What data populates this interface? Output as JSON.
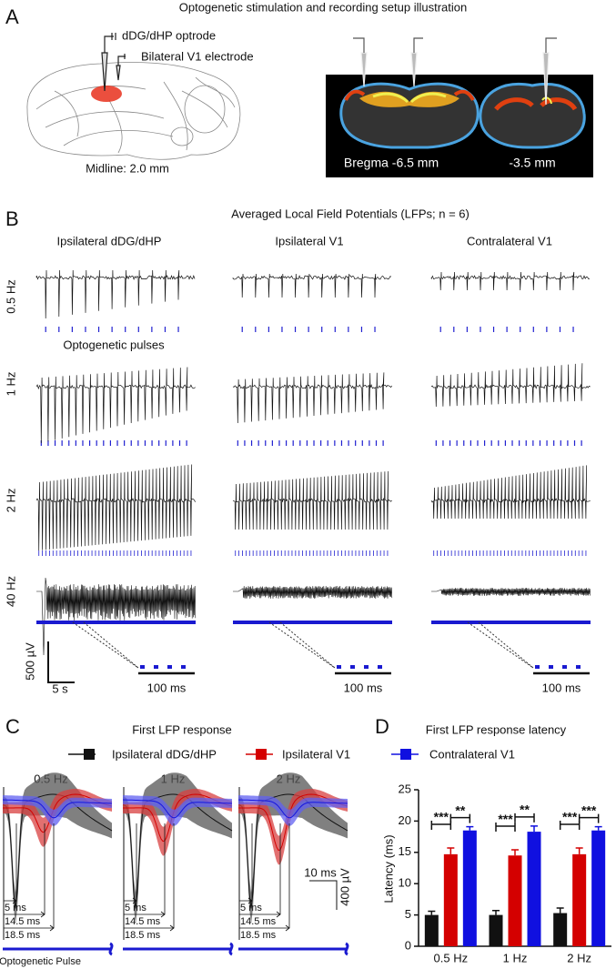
{
  "panel_a": {
    "label": "A",
    "title": "Optogenetic stimulation and recording setup illustration",
    "optrode_label": "dDG/dHP optrode",
    "electrode_label": "Bilateral V1 electrode",
    "midline_label": "Midline: 2.0 mm",
    "slice_labels": [
      "Bregma -6.5 mm",
      "-3.5 mm"
    ]
  },
  "panel_b": {
    "label": "B",
    "title": "Averaged Local Field Potentials (LFPs; n = 6)",
    "columns": [
      "Ipsilateral dDG/dHP",
      "Ipsilateral V1",
      "Contralateral V1"
    ],
    "rows": [
      "0.5 Hz",
      "1 Hz",
      "2 Hz",
      "40 Hz"
    ],
    "pulse_label": "Optogenetic pulses",
    "voltage_scale": "500 µV",
    "time_scale": "5 s",
    "inset_scale": "100 ms"
  },
  "panel_c": {
    "label": "C",
    "title": "First LFP response",
    "subpanels": [
      "0.5 Hz",
      "1 Hz",
      "2 Hz"
    ],
    "time_scale": "10 ms",
    "voltage_scale": "400 µV",
    "latency_labels": [
      "5 ms",
      "14.5 ms",
      "18.5 ms"
    ],
    "pulse_label": "Optogenetic Pulse"
  },
  "chart_data": {
    "type": "bar",
    "label": "D",
    "title": "First LFP response latency",
    "y_label": "Latency (ms)",
    "categories": [
      "0.5 Hz",
      "1 Hz",
      "2 Hz"
    ],
    "series": [
      {
        "name": "Ipsilateral dDG/dHP",
        "color": "#111111",
        "values": [
          5.0,
          5.0,
          5.3
        ],
        "errors": [
          0.6,
          0.7,
          0.8
        ]
      },
      {
        "name": "Ipsilateral V1",
        "color": "#d40000",
        "values": [
          14.7,
          14.5,
          14.7
        ],
        "errors": [
          1.0,
          0.9,
          1.0
        ]
      },
      {
        "name": "Contralateral V1",
        "color": "#1010e0",
        "values": [
          18.5,
          18.3,
          18.5
        ],
        "errors": [
          0.6,
          0.9,
          0.6
        ]
      }
    ],
    "ylim": [
      0,
      25
    ],
    "yticks": [
      0,
      5,
      10,
      15,
      20,
      25
    ],
    "significance": [
      [
        "***",
        "**"
      ],
      [
        "***",
        "**"
      ],
      [
        "***",
        "***"
      ]
    ]
  }
}
